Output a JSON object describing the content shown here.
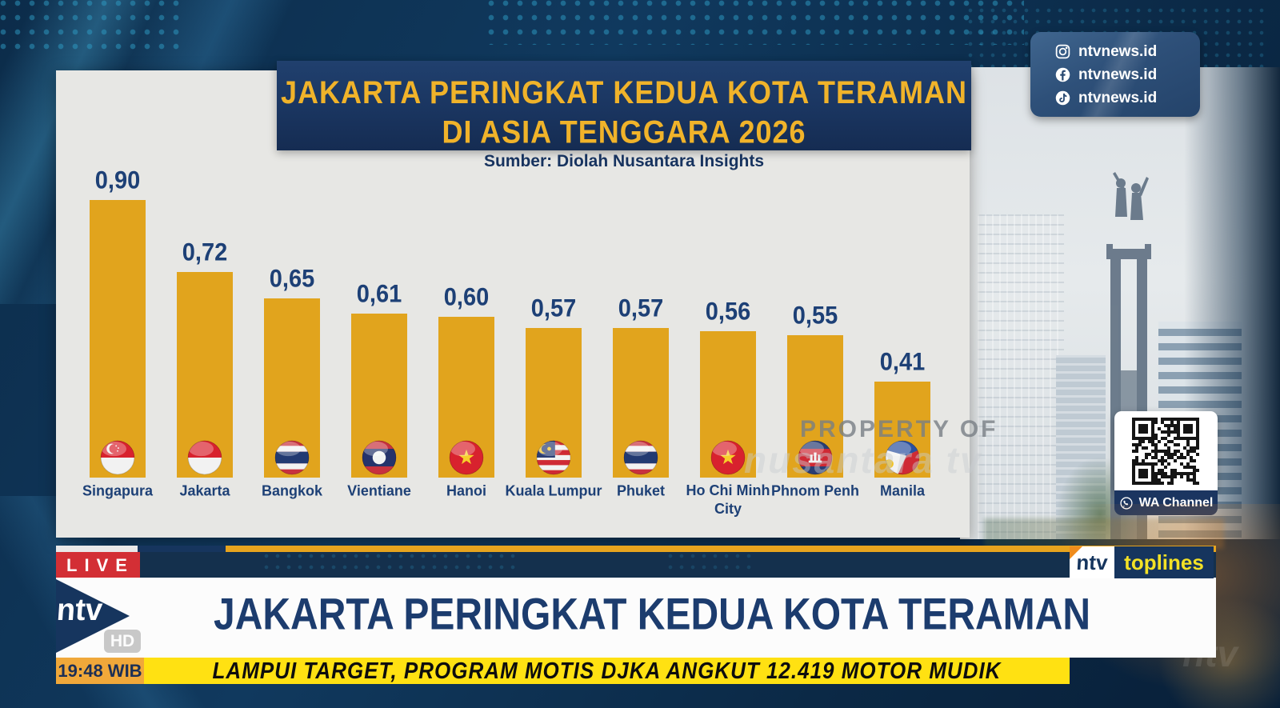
{
  "header": {
    "title_line1": "JAKARTA PERINGKAT KEDUA KOTA TERAMAN",
    "title_line2": "DI ASIA TENGGARA 2026",
    "source": "Sumber: Diolah Nusantara Insights"
  },
  "chart_data": {
    "type": "bar",
    "title": "Jakarta Peringkat Kedua Kota Teraman di Asia Tenggara 2026",
    "source": "Sumber: Diolah Nusantara Insights",
    "categories": [
      "Singapura",
      "Jakarta",
      "Bangkok",
      "Vientiane",
      "Hanoi",
      "Kuala Lumpur",
      "Phuket",
      "Ho Chi Minh City",
      "Phnom Penh",
      "Manila"
    ],
    "values": [
      0.9,
      0.72,
      0.65,
      0.61,
      0.6,
      0.57,
      0.57,
      0.56,
      0.55,
      0.41
    ],
    "value_labels": [
      "0,90",
      "0,72",
      "0,65",
      "0,61",
      "0,60",
      "0,57",
      "0,57",
      "0,56",
      "0,55",
      "0,41"
    ],
    "flags": [
      "singapore",
      "indonesia",
      "thailand",
      "laos",
      "vietnam",
      "malaysia",
      "thailand",
      "vietnam",
      "cambodia",
      "philippines"
    ],
    "bar_color": "#e1a41d",
    "label_color": "#1d4076",
    "ylim": [
      0,
      1
    ],
    "grid": false,
    "legend": false
  },
  "social_panel": {
    "items": [
      {
        "icon": "instagram-icon",
        "handle": "ntvnews.id"
      },
      {
        "icon": "facebook-icon",
        "handle": "ntvnews.id"
      },
      {
        "icon": "tiktok-icon",
        "handle": "ntvnews.id"
      }
    ]
  },
  "qr_panel": {
    "label": "WA Channel"
  },
  "watermark": {
    "line1": "PROPERTY OF",
    "line2": "nusantara tv",
    "corner": "ntv"
  },
  "lower_third": {
    "live": "LIVE",
    "channel": "ntv",
    "hd": "HD",
    "time": "19:48 WIB",
    "headline": "JAKARTA PERINGKAT KEDUA KOTA TERAMAN",
    "ticker": "LAMPUI TARGET, PROGRAM MOTIS DJKA ANGKUT 12.419 MOTOR MUDIK",
    "toplines_brand": "ntv",
    "toplines_label": "toplines"
  }
}
